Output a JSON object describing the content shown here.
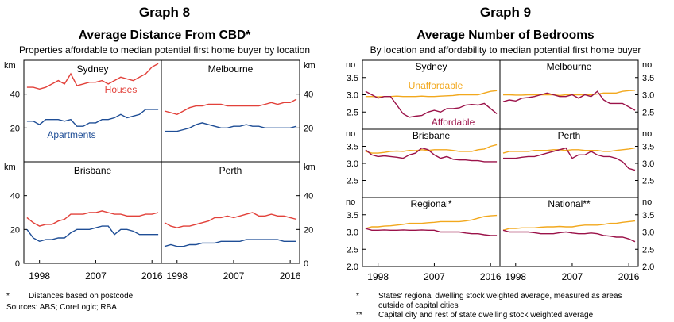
{
  "graph8": {
    "number": "Graph 8",
    "title": "Average Distance From CBD*",
    "subtitle": "Properties affordable to median potential first home buyer by location",
    "unit": "km",
    "footnote_marker": "*",
    "footnote": "Distances based on postcode",
    "sources": "Sources: ABS; CoreLogic; RBA"
  },
  "graph9": {
    "number": "Graph 9",
    "title": "Average Number of Bedrooms",
    "subtitle": "By location and affordability to median potential first home buyer",
    "unit": "no",
    "footnotes": [
      {
        "marker": "*",
        "text": "States' regional dwelling stock weighted average, measured as areas outside of capital cities"
      },
      {
        "marker": "**",
        "text": "Capital city and rest of state dwelling stock weighted average"
      }
    ]
  },
  "colors": {
    "red": "#e2413a",
    "blue": "#1f4e96",
    "orange": "#f2a81d",
    "purple": "#9b1249"
  },
  "chart_data": [
    {
      "type": "line",
      "chart": "graph8",
      "ylabel": "km",
      "ylim": [
        0,
        60
      ],
      "yticks": [
        0,
        20,
        40
      ],
      "xticks": [
        "1998",
        "2007",
        "2016"
      ],
      "xlim": [
        1995.5,
        2017.5
      ],
      "x": [
        1996,
        1997,
        1998,
        1999,
        2000,
        2001,
        2002,
        2003,
        2004,
        2005,
        2006,
        2007,
        2008,
        2009,
        2010,
        2011,
        2012,
        2013,
        2014,
        2015,
        2016,
        2017
      ],
      "panels": [
        {
          "name": "Sydney",
          "series": [
            {
              "name": "Houses",
              "values": [
                44,
                44,
                43,
                44,
                46,
                48,
                46,
                52,
                45,
                46,
                47,
                47,
                48,
                46,
                48,
                50,
                49,
                48,
                50,
                52,
                56,
                58
              ]
            },
            {
              "name": "Apartments",
              "values": [
                24,
                24,
                22,
                25,
                25,
                25,
                24,
                25,
                21,
                21,
                23,
                23,
                25,
                25,
                26,
                28,
                26,
                27,
                28,
                31,
                31,
                31
              ]
            }
          ]
        },
        {
          "name": "Melbourne",
          "series": [
            {
              "name": "Houses",
              "values": [
                30,
                29,
                28,
                30,
                32,
                33,
                33,
                34,
                34,
                34,
                33,
                33,
                33,
                33,
                33,
                33,
                34,
                35,
                34,
                35,
                35,
                37
              ]
            },
            {
              "name": "Apartments",
              "values": [
                18,
                18,
                18,
                19,
                20,
                22,
                23,
                22,
                21,
                20,
                20,
                21,
                21,
                22,
                21,
                21,
                20,
                20,
                20,
                20,
                20,
                21
              ]
            }
          ]
        },
        {
          "name": "Brisbane",
          "series": [
            {
              "name": "Houses",
              "values": [
                27,
                24,
                22,
                23,
                23,
                25,
                26,
                29,
                29,
                29,
                30,
                30,
                31,
                30,
                29,
                29,
                28,
                28,
                28,
                29,
                29,
                30
              ]
            },
            {
              "name": "Apartments",
              "values": [
                20,
                15,
                13,
                14,
                14,
                15,
                15,
                18,
                20,
                20,
                20,
                21,
                22,
                22,
                17,
                20,
                20,
                19,
                17,
                17,
                17,
                17
              ]
            }
          ]
        },
        {
          "name": "Perth",
          "series": [
            {
              "name": "Houses",
              "values": [
                24,
                22,
                21,
                22,
                22,
                23,
                24,
                25,
                27,
                27,
                28,
                27,
                28,
                29,
                30,
                28,
                28,
                29,
                28,
                28,
                27,
                26
              ]
            },
            {
              "name": "Apartments",
              "values": [
                10,
                11,
                10,
                10,
                11,
                11,
                12,
                12,
                12,
                13,
                13,
                13,
                13,
                14,
                14,
                14,
                14,
                14,
                14,
                13,
                13,
                13
              ]
            }
          ]
        }
      ]
    },
    {
      "type": "line",
      "chart": "graph9",
      "ylabel": "no",
      "ylim": [
        2.0,
        4.0
      ],
      "yticks": [
        2.0,
        2.5,
        3.0,
        3.5
      ],
      "xticks": [
        "1998",
        "2007",
        "2016"
      ],
      "xlim": [
        1995.5,
        2017.5
      ],
      "x": [
        1996,
        1997,
        1998,
        1999,
        2000,
        2001,
        2002,
        2003,
        2004,
        2005,
        2006,
        2007,
        2008,
        2009,
        2010,
        2011,
        2012,
        2013,
        2014,
        2015,
        2016,
        2017
      ],
      "panels": [
        {
          "name": "Sydney",
          "series": [
            {
              "name": "Unaffordable",
              "values": [
                2.95,
                2.95,
                2.94,
                2.95,
                2.95,
                2.96,
                2.95,
                2.95,
                2.95,
                2.96,
                2.95,
                2.95,
                2.96,
                2.97,
                2.98,
                3.0,
                3.0,
                3.0,
                3.0,
                3.05,
                3.1,
                3.12
              ]
            },
            {
              "name": "Affordable",
              "values": [
                3.1,
                3.0,
                2.9,
                2.95,
                2.95,
                2.7,
                2.45,
                2.35,
                2.38,
                2.4,
                2.5,
                2.55,
                2.5,
                2.6,
                2.6,
                2.62,
                2.7,
                2.72,
                2.7,
                2.75,
                2.6,
                2.45
              ]
            }
          ]
        },
        {
          "name": "Melbourne",
          "series": [
            {
              "name": "Unaffordable",
              "values": [
                3.0,
                3.0,
                2.99,
                2.99,
                3.0,
                3.0,
                3.0,
                3.0,
                3.0,
                2.98,
                3.0,
                3.0,
                3.0,
                3.0,
                3.0,
                3.02,
                3.05,
                3.05,
                3.05,
                3.1,
                3.12,
                3.13
              ]
            },
            {
              "name": "Affordable",
              "values": [
                2.8,
                2.85,
                2.82,
                2.9,
                2.92,
                2.95,
                3.0,
                3.05,
                3.0,
                2.95,
                2.95,
                3.0,
                2.9,
                3.0,
                2.95,
                3.1,
                2.85,
                2.75,
                2.75,
                2.75,
                2.65,
                2.55
              ]
            }
          ]
        },
        {
          "name": "Brisbane",
          "series": [
            {
              "name": "Unaffordable",
              "values": [
                3.35,
                3.3,
                3.3,
                3.32,
                3.35,
                3.36,
                3.35,
                3.38,
                3.37,
                3.4,
                3.38,
                3.4,
                3.4,
                3.4,
                3.38,
                3.35,
                3.35,
                3.35,
                3.4,
                3.42,
                3.5,
                3.55
              ]
            },
            {
              "name": "Affordable",
              "values": [
                3.4,
                3.25,
                3.2,
                3.22,
                3.2,
                3.18,
                3.15,
                3.25,
                3.3,
                3.45,
                3.4,
                3.25,
                3.15,
                3.2,
                3.12,
                3.1,
                3.1,
                3.08,
                3.08,
                3.05,
                3.05,
                3.05
              ]
            }
          ]
        },
        {
          "name": "Perth",
          "series": [
            {
              "name": "Unaffordable",
              "values": [
                3.3,
                3.35,
                3.35,
                3.35,
                3.35,
                3.38,
                3.38,
                3.38,
                3.4,
                3.4,
                3.38,
                3.4,
                3.4,
                3.38,
                3.38,
                3.38,
                3.35,
                3.35,
                3.38,
                3.4,
                3.42,
                3.45
              ]
            },
            {
              "name": "Affordable",
              "values": [
                3.15,
                3.15,
                3.15,
                3.18,
                3.2,
                3.2,
                3.25,
                3.3,
                3.35,
                3.4,
                3.45,
                3.15,
                3.25,
                3.25,
                3.35,
                3.25,
                3.2,
                3.2,
                3.15,
                3.05,
                2.85,
                2.8
              ]
            }
          ]
        },
        {
          "name": "Regional*",
          "series": [
            {
              "name": "Unaffordable",
              "values": [
                3.1,
                3.15,
                3.15,
                3.17,
                3.18,
                3.2,
                3.22,
                3.25,
                3.25,
                3.25,
                3.27,
                3.28,
                3.3,
                3.3,
                3.3,
                3.3,
                3.32,
                3.35,
                3.4,
                3.45,
                3.47,
                3.48
              ]
            },
            {
              "name": "Affordable",
              "values": [
                3.1,
                3.05,
                3.05,
                3.06,
                3.05,
                3.05,
                3.06,
                3.05,
                3.05,
                3.06,
                3.05,
                3.05,
                3.0,
                3.0,
                3.0,
                3.0,
                2.97,
                2.95,
                2.95,
                2.92,
                2.9,
                2.9
              ]
            }
          ]
        },
        {
          "name": "National**",
          "series": [
            {
              "name": "Unaffordable",
              "values": [
                3.05,
                3.1,
                3.1,
                3.12,
                3.12,
                3.12,
                3.14,
                3.15,
                3.15,
                3.16,
                3.15,
                3.15,
                3.18,
                3.2,
                3.2,
                3.2,
                3.22,
                3.25,
                3.25,
                3.28,
                3.3,
                3.32
              ]
            },
            {
              "name": "Affordable",
              "values": [
                3.05,
                3.0,
                3.0,
                3.0,
                3.0,
                2.98,
                2.95,
                2.95,
                2.95,
                2.98,
                3.0,
                2.97,
                2.95,
                2.95,
                2.97,
                2.95,
                2.9,
                2.88,
                2.85,
                2.85,
                2.8,
                2.72
              ]
            }
          ]
        }
      ]
    }
  ],
  "series_labels": {
    "sydney_houses": "Houses",
    "sydney_apartments": "Apartments",
    "sydney_unaffordable": "Unaffordable",
    "sydney_affordable": "Affordable"
  }
}
